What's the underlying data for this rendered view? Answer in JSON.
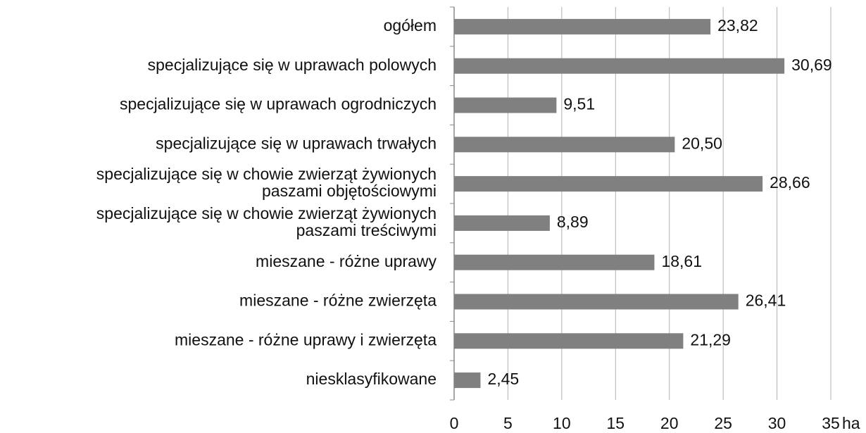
{
  "chart_data": {
    "type": "bar",
    "orientation": "horizontal",
    "categories": [
      "ogółem",
      "specjalizujące się w uprawach polowych",
      "specjalizujące się w uprawach ogrodniczych",
      "specjalizujące się w uprawach trwałych",
      "specjalizujące się w chowie zwierząt żywionych\npaszami objętościowymi",
      "specjalizujące się w chowie zwierząt żywionych\npaszami treściwymi",
      "mieszane - różne uprawy",
      "mieszane - różne zwierzęta",
      "mieszane - różne uprawy i zwierzęta",
      "niesklasyfikowane"
    ],
    "values": [
      23.82,
      30.69,
      9.51,
      20.5,
      28.66,
      8.89,
      18.61,
      26.41,
      21.29,
      2.45
    ],
    "value_labels": [
      "23,82",
      "30,69",
      "9,51",
      "20,50",
      "28,66",
      "8,89",
      "18,61",
      "26,41",
      "21,29",
      "2,45"
    ],
    "color": "#808080",
    "xlim": [
      0,
      35
    ],
    "xticks": [
      0,
      5,
      10,
      15,
      20,
      25,
      30,
      35
    ],
    "x_label": "ha",
    "grid": true
  }
}
